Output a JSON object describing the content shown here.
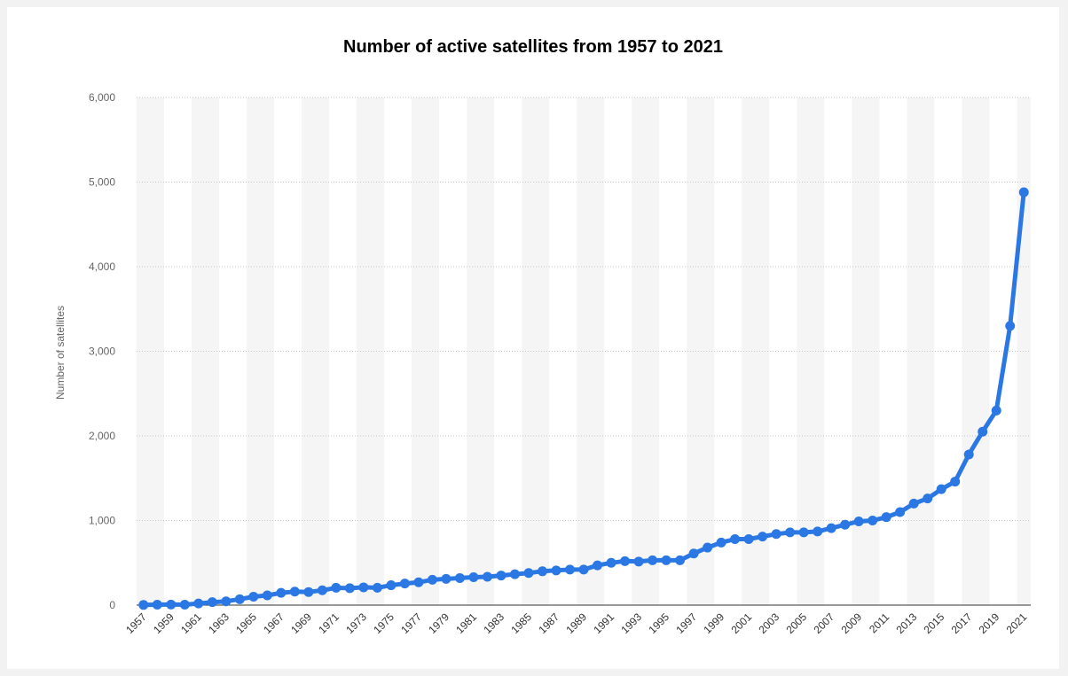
{
  "chart_data": {
    "type": "line",
    "title": "Number of active satellites from 1957 to 2021",
    "xlabel": "",
    "ylabel": "Number of satellites",
    "ylim": [
      0,
      6000
    ],
    "yticks": [
      "0",
      "1,000",
      "2,000",
      "3,000",
      "4,000",
      "5,000",
      "6,000"
    ],
    "x": [
      1957,
      1958,
      1959,
      1960,
      1961,
      1962,
      1963,
      1964,
      1965,
      1966,
      1967,
      1968,
      1969,
      1970,
      1971,
      1972,
      1973,
      1974,
      1975,
      1976,
      1977,
      1978,
      1979,
      1980,
      1981,
      1982,
      1983,
      1984,
      1985,
      1986,
      1987,
      1988,
      1989,
      1990,
      1991,
      1992,
      1993,
      1994,
      1995,
      1996,
      1997,
      1998,
      1999,
      2000,
      2001,
      2002,
      2003,
      2004,
      2005,
      2006,
      2007,
      2008,
      2009,
      2010,
      2011,
      2012,
      2013,
      2014,
      2015,
      2016,
      2017,
      2018,
      2019,
      2020,
      2021
    ],
    "xtick_labels": [
      "1957",
      "1959",
      "1961",
      "1963",
      "1965",
      "1967",
      "1969",
      "1971",
      "1973",
      "1975",
      "1977",
      "1979",
      "1981",
      "1983",
      "1985",
      "1987",
      "1989",
      "1991",
      "1993",
      "1995",
      "1997",
      "1999",
      "2001",
      "2003",
      "2005",
      "2007",
      "2009",
      "2011",
      "2013",
      "2015",
      "2017",
      "2019",
      "2021"
    ],
    "series": [
      {
        "values": [
          2,
          5,
          7,
          5,
          20,
          35,
          45,
          70,
          100,
          115,
          145,
          160,
          155,
          175,
          205,
          200,
          210,
          205,
          235,
          255,
          270,
          300,
          310,
          320,
          330,
          335,
          350,
          365,
          380,
          400,
          410,
          420,
          420,
          470,
          500,
          520,
          515,
          530,
          530,
          530,
          610,
          680,
          740,
          780,
          780,
          810,
          840,
          860,
          860,
          870,
          910,
          950,
          990,
          1000,
          1040,
          1100,
          1200,
          1260,
          1370,
          1460,
          1780,
          2050,
          2300,
          3300,
          4880
        ]
      }
    ],
    "line_color": "#2b78e4",
    "grid": true
  }
}
